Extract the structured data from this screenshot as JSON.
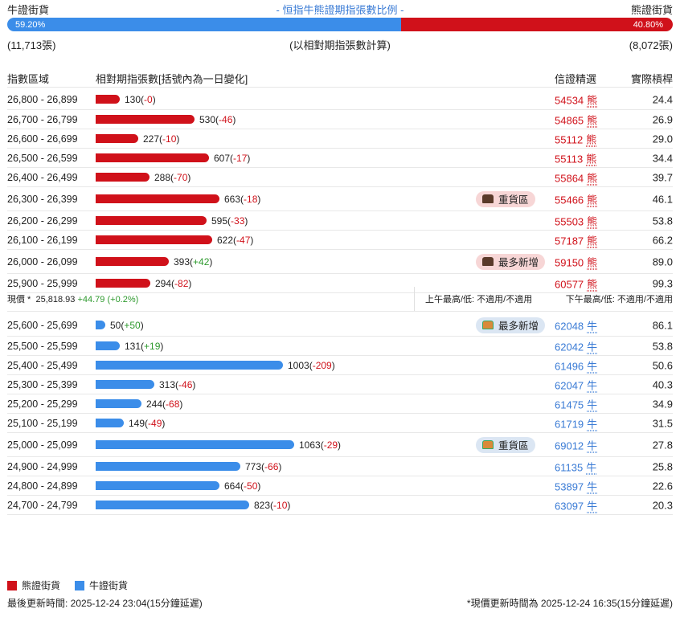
{
  "header": {
    "bull_title": "牛證街貨",
    "center_title": "- 恒指牛熊證期指張數比例 -",
    "bear_title": "熊證街貨",
    "bull_pct": "59.20%",
    "bear_pct": "40.80%",
    "bull_fraction": 0.592,
    "bull_count": "(11,713張)",
    "calc_note": "(以相對期指張數計算)",
    "bear_count": "(8,072張)"
  },
  "columns": {
    "range": "指數區域",
    "contracts": "相對期指張數[括號內為一日變化]",
    "pick": "信證精選",
    "leverage": "實際槓桿"
  },
  "colors": {
    "bear": "#d0111a",
    "bull": "#3b8de9",
    "positive": "#2e9a2e"
  },
  "bear_rows": [
    {
      "range": "26,800 - 26,899",
      "value": 130,
      "num": "130",
      "change": "-0",
      "code": "54534",
      "kind": "熊",
      "lev": "24.4",
      "tag": ""
    },
    {
      "range": "26,700 - 26,799",
      "value": 530,
      "num": "530",
      "change": "-46",
      "code": "54865",
      "kind": "熊",
      "lev": "26.9",
      "tag": ""
    },
    {
      "range": "26,600 - 26,699",
      "value": 227,
      "num": "227",
      "change": "-10",
      "code": "55112",
      "kind": "熊",
      "lev": "29.0",
      "tag": ""
    },
    {
      "range": "26,500 - 26,599",
      "value": 607,
      "num": "607",
      "change": "-17",
      "code": "55113",
      "kind": "熊",
      "lev": "34.4",
      "tag": ""
    },
    {
      "range": "26,400 - 26,499",
      "value": 288,
      "num": "288",
      "change": "-70",
      "code": "55864",
      "kind": "熊",
      "lev": "39.7",
      "tag": ""
    },
    {
      "range": "26,300 - 26,399",
      "value": 663,
      "num": "663",
      "change": "-18",
      "code": "55466",
      "kind": "熊",
      "lev": "46.1",
      "tag": "重貨區"
    },
    {
      "range": "26,200 - 26,299",
      "value": 595,
      "num": "595",
      "change": "-33",
      "code": "55503",
      "kind": "熊",
      "lev": "53.8",
      "tag": ""
    },
    {
      "range": "26,100 - 26,199",
      "value": 622,
      "num": "622",
      "change": "-47",
      "code": "57187",
      "kind": "熊",
      "lev": "66.2",
      "tag": ""
    },
    {
      "range": "26,000 - 26,099",
      "value": 393,
      "num": "393",
      "change": "+42",
      "code": "59150",
      "kind": "熊",
      "lev": "89.0",
      "tag": "最多新增"
    },
    {
      "range": "25,900 - 25,999",
      "value": 294,
      "num": "294",
      "change": "-82",
      "code": "60577",
      "kind": "熊",
      "lev": "99.3",
      "tag": ""
    }
  ],
  "price": {
    "label": "現價 *",
    "value": "25,818.93",
    "change": "+44.79 (+0.2%)",
    "am": "上午最高/低: 不適用/不適用",
    "pm": "下午最高/低: 不適用/不適用"
  },
  "bull_rows": [
    {
      "range": "25,600 - 25,699",
      "value": 50,
      "num": "50",
      "change": "+50",
      "code": "62048",
      "kind": "牛",
      "lev": "86.1",
      "tag": "最多新增"
    },
    {
      "range": "25,500 - 25,599",
      "value": 131,
      "num": "131",
      "change": "+19",
      "code": "62042",
      "kind": "牛",
      "lev": "53.8",
      "tag": ""
    },
    {
      "range": "25,400 - 25,499",
      "value": 1003,
      "num": "1003",
      "change": "-209",
      "code": "61496",
      "kind": "牛",
      "lev": "50.6",
      "tag": ""
    },
    {
      "range": "25,300 - 25,399",
      "value": 313,
      "num": "313",
      "change": "-46",
      "code": "62047",
      "kind": "牛",
      "lev": "40.3",
      "tag": ""
    },
    {
      "range": "25,200 - 25,299",
      "value": 244,
      "num": "244",
      "change": "-68",
      "code": "61475",
      "kind": "牛",
      "lev": "34.9",
      "tag": ""
    },
    {
      "range": "25,100 - 25,199",
      "value": 149,
      "num": "149",
      "change": "-49",
      "code": "61719",
      "kind": "牛",
      "lev": "31.5",
      "tag": ""
    },
    {
      "range": "25,000 - 25,099",
      "value": 1063,
      "num": "1063",
      "change": "-29",
      "code": "69012",
      "kind": "牛",
      "lev": "27.8",
      "tag": "重貨區"
    },
    {
      "range": "24,900 - 24,999",
      "value": 773,
      "num": "773",
      "change": "-66",
      "code": "61135",
      "kind": "牛",
      "lev": "25.8",
      "tag": ""
    },
    {
      "range": "24,800 - 24,899",
      "value": 664,
      "num": "664",
      "change": "-50",
      "code": "53897",
      "kind": "牛",
      "lev": "22.6",
      "tag": ""
    },
    {
      "range": "24,700 - 24,799",
      "value": 823,
      "num": "823",
      "change": "-10",
      "code": "63097",
      "kind": "牛",
      "lev": "20.3",
      "tag": ""
    }
  ],
  "legend": {
    "bear": "熊證街貨",
    "bull": "牛證街貨"
  },
  "footer": {
    "left": "最後更新時間: 2025-12-24 23:04(15分鐘延遲)",
    "right": "*現價更新時間為 2025-12-24 16:35(15分鐘延遲)"
  }
}
